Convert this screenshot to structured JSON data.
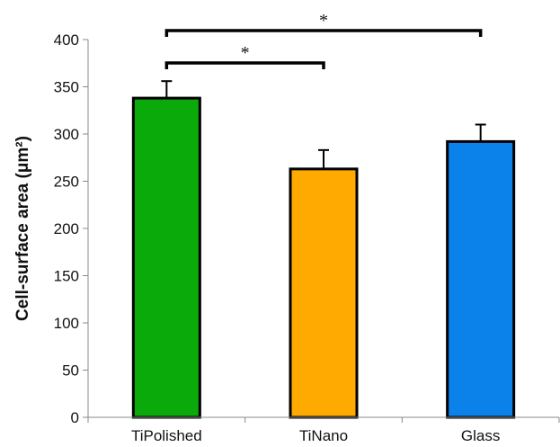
{
  "chart_data": {
    "type": "bar",
    "categories": [
      "TiPolished",
      "TiNano",
      "Glass"
    ],
    "values": [
      338,
      263,
      292
    ],
    "error_upper": [
      356,
      283,
      310
    ],
    "bar_colors": [
      "#0aaa0a",
      "#ffaa00",
      "#0a82ea"
    ],
    "title": "",
    "xlabel": "",
    "ylabel": "Cell-surface area (μm²)",
    "ylim": [
      0,
      400
    ],
    "yticks": [
      0,
      50,
      100,
      150,
      200,
      250,
      300,
      350,
      400
    ],
    "grid": false,
    "significance": [
      {
        "from": "TiPolished",
        "to": "TiNano",
        "label": "*"
      },
      {
        "from": "TiPolished",
        "to": "Glass",
        "label": "*"
      }
    ]
  }
}
